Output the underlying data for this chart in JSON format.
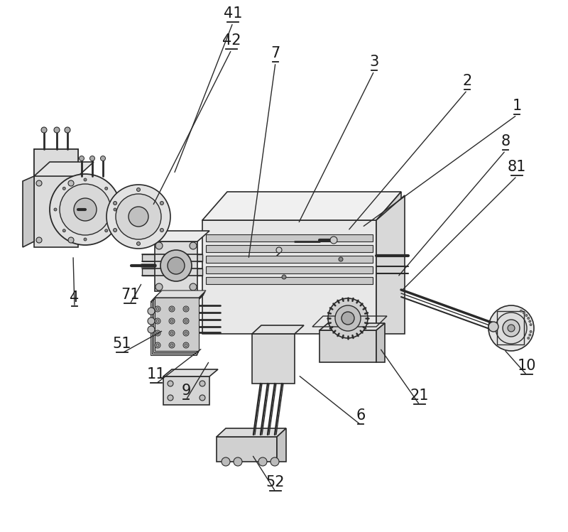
{
  "bg_color": "#ffffff",
  "lc": "#2a2a2a",
  "lc2": "#555555",
  "label_color": "#1a1a1a",
  "lfs": 15,
  "figsize": [
    8.0,
    7.49
  ],
  "dpi": 100,
  "labels": [
    [
      "1",
      728,
      162
    ],
    [
      "2",
      658,
      127
    ],
    [
      "3",
      527,
      100
    ],
    [
      "7",
      388,
      88
    ],
    [
      "8",
      712,
      212
    ],
    [
      "81",
      728,
      248
    ],
    [
      "41",
      328,
      32
    ],
    [
      "42",
      326,
      70
    ],
    [
      "4",
      105,
      432
    ],
    [
      "71",
      183,
      428
    ],
    [
      "51",
      172,
      497
    ],
    [
      "11",
      220,
      540
    ],
    [
      "9",
      262,
      563
    ],
    [
      "6",
      508,
      598
    ],
    [
      "21",
      591,
      570
    ],
    [
      "10",
      742,
      528
    ],
    [
      "52",
      388,
      692
    ]
  ],
  "leader_lines": [
    [
      "1",
      728,
      162,
      510,
      320
    ],
    [
      "2",
      658,
      127,
      490,
      325
    ],
    [
      "3",
      527,
      100,
      420,
      315
    ],
    [
      "7",
      388,
      88,
      350,
      365
    ],
    [
      "8",
      712,
      212,
      560,
      390
    ],
    [
      "81",
      728,
      248,
      565,
      410
    ],
    [
      "41",
      328,
      32,
      245,
      245
    ],
    [
      "42",
      326,
      70,
      215,
      290
    ],
    [
      "4",
      105,
      432,
      103,
      360
    ],
    [
      "71",
      183,
      428,
      200,
      398
    ],
    [
      "51",
      172,
      497,
      230,
      465
    ],
    [
      "11",
      220,
      540,
      285,
      490
    ],
    [
      "9",
      262,
      563,
      295,
      508
    ],
    [
      "6",
      508,
      598,
      420,
      528
    ],
    [
      "21",
      591,
      570,
      535,
      490
    ],
    [
      "10",
      742,
      528,
      710,
      492
    ],
    [
      "52",
      388,
      692,
      355,
      640
    ]
  ]
}
